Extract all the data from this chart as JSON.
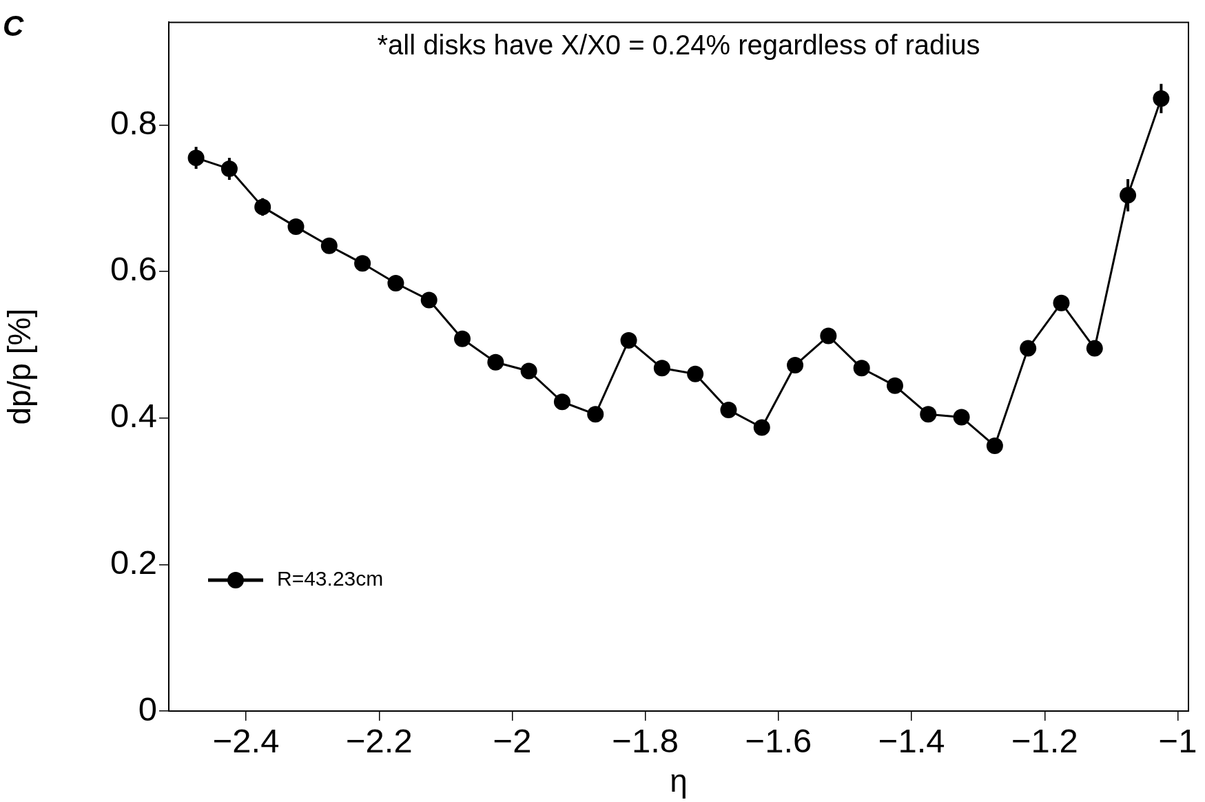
{
  "chart_data": {
    "type": "line",
    "xlabel": "η",
    "ylabel": "dp/p [%]",
    "annotations": [
      "C",
      "*all disks have X/X0 = 0.24% regardless of radius"
    ],
    "xlim": [
      -2.516,
      -0.984
    ],
    "ylim": [
      0,
      0.94
    ],
    "xticks": [
      {
        "value": -2.4,
        "label": "−2.4"
      },
      {
        "value": -2.2,
        "label": "−2.2"
      },
      {
        "value": -2,
        "label": "−2"
      },
      {
        "value": -1.8,
        "label": "−1.8"
      },
      {
        "value": -1.6,
        "label": "−1.6"
      },
      {
        "value": -1.4,
        "label": "−1.4"
      },
      {
        "value": -1.2,
        "label": "−1.2"
      },
      {
        "value": -1,
        "label": "−1"
      }
    ],
    "yticks": [
      0,
      0.2,
      0.4,
      0.6,
      0.8
    ],
    "grid": false,
    "legend": "bottom left",
    "marker": "circle",
    "line_style": "solid",
    "series": [
      {
        "name": "R=43.23cm",
        "color": "#000000",
        "x": [
          -2.475,
          -2.425,
          -2.375,
          -2.325,
          -2.275,
          -2.225,
          -2.175,
          -2.125,
          -2.075,
          -2.025,
          -1.975,
          -1.925,
          -1.875,
          -1.825,
          -1.775,
          -1.725,
          -1.675,
          -1.625,
          -1.575,
          -1.525,
          -1.475,
          -1.425,
          -1.375,
          -1.325,
          -1.275,
          -1.225,
          -1.175,
          -1.125,
          -1.075,
          -1.025
        ],
        "values": [
          0.755,
          0.74,
          0.688,
          0.661,
          0.635,
          0.611,
          0.584,
          0.561,
          0.508,
          0.476,
          0.464,
          0.422,
          0.405,
          0.506,
          0.468,
          0.46,
          0.411,
          0.387,
          0.472,
          0.512,
          0.468,
          0.444,
          0.405,
          0.401,
          0.362,
          0.495,
          0.557,
          0.495,
          0.704,
          0.836
        ],
        "errors": [
          0.015,
          0.015,
          0.012,
          null,
          null,
          null,
          null,
          null,
          null,
          null,
          null,
          null,
          null,
          null,
          null,
          null,
          null,
          null,
          null,
          null,
          null,
          null,
          null,
          null,
          null,
          null,
          null,
          null,
          0.022,
          0.02
        ]
      }
    ]
  }
}
